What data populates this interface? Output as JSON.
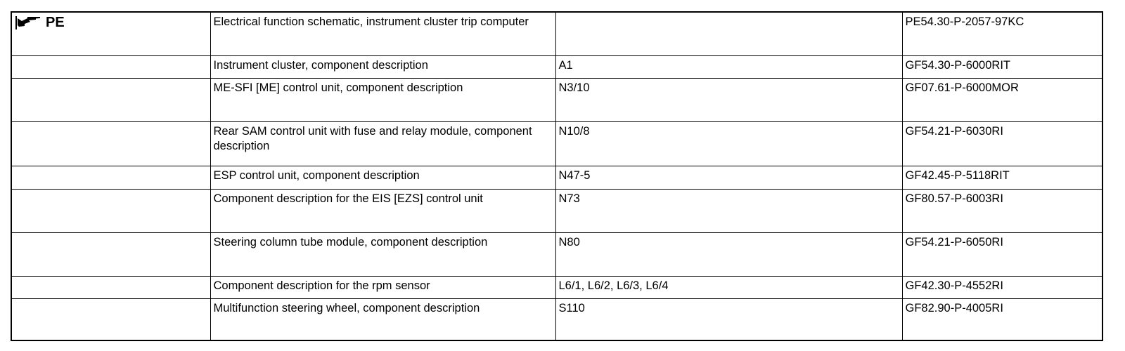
{
  "header": {
    "icon": "pointing-hand-icon",
    "label": "PE"
  },
  "rows": [
    {
      "description": "Electrical function schematic, instrument cluster trip computer",
      "designation": "",
      "document": "PE54.30-P-2057-97KC"
    },
    {
      "description": "Instrument cluster, component description",
      "designation": "A1",
      "document": "GF54.30-P-6000RIT"
    },
    {
      "description": "ME-SFI [ME] control unit, component description",
      "designation": "N3/10",
      "document": "GF07.61-P-6000MOR"
    },
    {
      "description": "Rear SAM control unit with fuse and relay module, component description",
      "designation": "N10/8",
      "document": "GF54.21-P-6030RI"
    },
    {
      "description": "ESP control unit, component description",
      "designation": "N47-5",
      "document": "GF42.45-P-5118RIT"
    },
    {
      "description": "Component description for the EIS [EZS] control unit",
      "designation": "N73",
      "document": "GF80.57-P-6003RI"
    },
    {
      "description": "Steering column tube module, component description",
      "designation": "N80",
      "document": "GF54.21-P-6050RI"
    },
    {
      "description": "Component description for the rpm sensor",
      "designation": "L6/1, L6/2, L6/3, L6/4",
      "document": "GF42.30-P-4552RI"
    },
    {
      "description": "Multifunction steering wheel, component description",
      "designation": "S110",
      "document": "GF82.90-P-4005RI"
    }
  ]
}
